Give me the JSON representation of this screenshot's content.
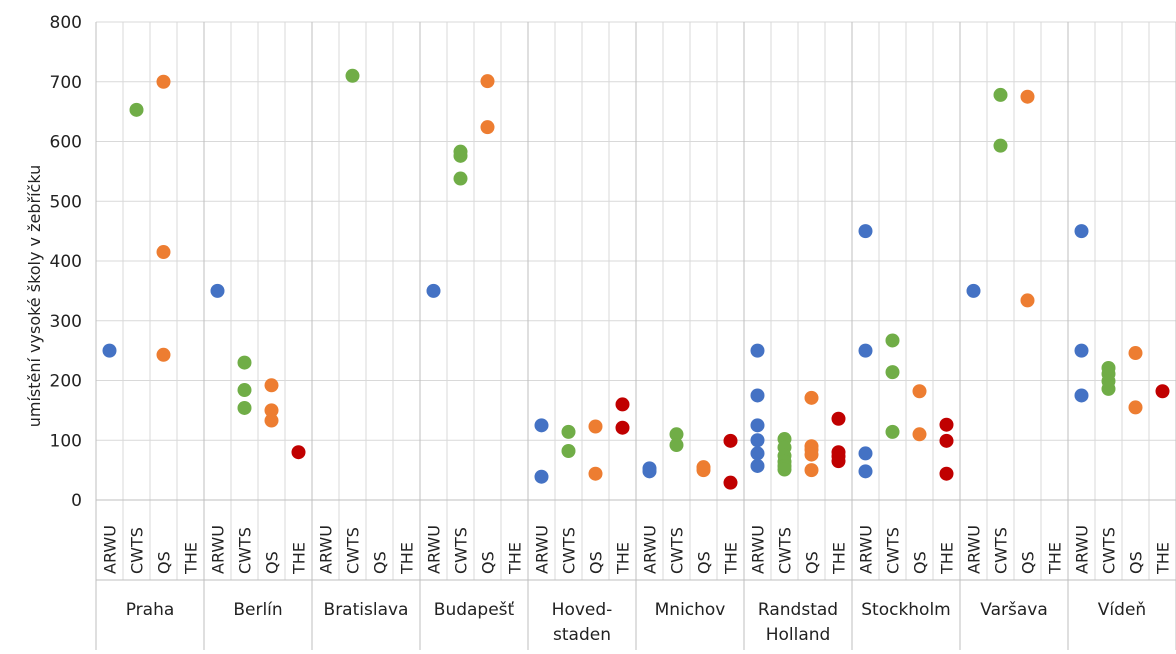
{
  "chart_data": {
    "type": "scatter",
    "title": "",
    "xlabel": "",
    "ylabel": "umístění vysoké školy v žebříčku",
    "ylim": [
      0,
      800
    ],
    "yticks": [
      "0",
      "100",
      "200",
      "300",
      "400",
      "500",
      "600",
      "700",
      "800"
    ],
    "grid": true,
    "legend": "none",
    "rankings": [
      "ARWU",
      "CWTS",
      "QS",
      "THE"
    ],
    "colors": {
      "ARWU": "#4472C4",
      "CWTS": "#70AD47",
      "QS": "#ED7D31",
      "THE": "#C00000"
    },
    "groups": [
      {
        "name": "Praha",
        "points": {
          "ARWU": [
            250
          ],
          "CWTS": [
            653
          ],
          "QS": [
            700,
            415,
            243
          ],
          "THE": []
        }
      },
      {
        "name": "Berlín",
        "points": {
          "ARWU": [
            350
          ],
          "CWTS": [
            230,
            184,
            154
          ],
          "QS": [
            192,
            150,
            133
          ],
          "THE": [
            80
          ]
        }
      },
      {
        "name": "Bratislava",
        "points": {
          "ARWU": [],
          "CWTS": [
            710
          ],
          "QS": [],
          "THE": []
        }
      },
      {
        "name": "Budapešť",
        "points": {
          "ARWU": [
            350
          ],
          "CWTS": [
            583,
            576,
            538
          ],
          "QS": [
            701,
            624
          ],
          "THE": []
        }
      },
      {
        "name": "Hoved- staden",
        "points": {
          "ARWU": [
            125,
            39
          ],
          "CWTS": [
            114,
            82
          ],
          "QS": [
            123,
            44
          ],
          "THE": [
            160,
            121
          ]
        }
      },
      {
        "name": "Mnichov",
        "points": {
          "ARWU": [
            53,
            48
          ],
          "CWTS": [
            110,
            92
          ],
          "QS": [
            55,
            50
          ],
          "THE": [
            99,
            29
          ]
        }
      },
      {
        "name": "Randstad Holland",
        "points": {
          "ARWU": [
            250,
            175,
            125,
            100,
            78,
            57
          ],
          "CWTS": [
            102,
            88,
            74,
            64,
            57,
            51
          ],
          "QS": [
            171,
            90,
            84,
            76,
            50
          ],
          "THE": [
            136,
            80,
            73,
            65
          ]
        }
      },
      {
        "name": "Stockholm",
        "points": {
          "ARWU": [
            450,
            250,
            78,
            48
          ],
          "CWTS": [
            267,
            214,
            114
          ],
          "QS": [
            182,
            110
          ],
          "THE": [
            126,
            99,
            44
          ]
        }
      },
      {
        "name": "Varšava",
        "points": {
          "ARWU": [
            350
          ],
          "CWTS": [
            678,
            593
          ],
          "QS": [
            675,
            334
          ],
          "THE": []
        }
      },
      {
        "name": "Vídeň",
        "points": {
          "ARWU": [
            450,
            250,
            175
          ],
          "CWTS": [
            221,
            211,
            199,
            186
          ],
          "QS": [
            246,
            155
          ],
          "THE": [
            182
          ]
        }
      }
    ]
  }
}
